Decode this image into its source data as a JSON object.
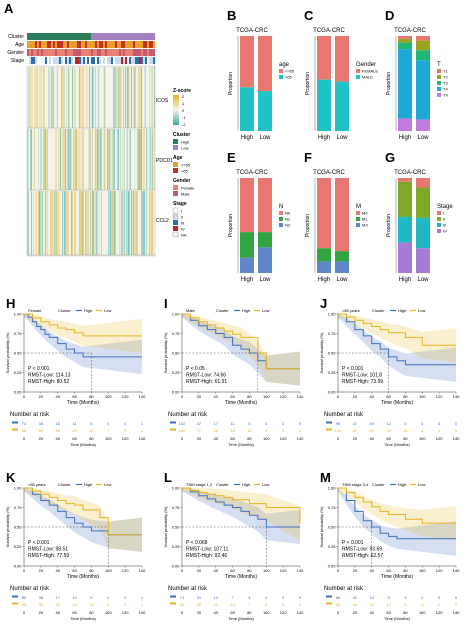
{
  "colors": {
    "high": "#3f6fbf",
    "low": "#e6b420",
    "cluster_high": "#2e7d5b",
    "cluster_low": "#a37fc4",
    "age_le65": "#e69f2a",
    "age_gt65": "#c4312a",
    "gender_female": "#e6836f",
    "gender_male": "#c25a6e",
    "stage_I": "#ffffff",
    "stage_II": "#c9dcef",
    "stage_III": "#2f6ea8",
    "stage_IV": "#b6232b",
    "stage_NA": "#f5f5f5",
    "zhigh": "#e5b11e",
    "zmid": "#f4f4ec",
    "zlow": "#3caaa0"
  },
  "heatmap": {
    "panel_label": "A",
    "track_labels": [
      "Cluster",
      "Age",
      "Gender",
      "Stage"
    ],
    "gene_labels": [
      "ICOS",
      "PDCD1",
      "CCL2"
    ],
    "legend": {
      "zscore_title": "Z-score",
      "zscore_ticks": [
        "2",
        "1",
        "0",
        "-1",
        "-2"
      ],
      "cluster_title": "Cluster",
      "cluster_items": [
        "High",
        "Low"
      ],
      "age_title": "Age",
      "age_items": [
        "<=65",
        ">65"
      ],
      "gender_title": "Gender",
      "gender_items": [
        "Female",
        "Male"
      ],
      "stage_title": "Stage",
      "stage_items": [
        "I",
        "II",
        "III",
        "IV",
        "NA"
      ]
    }
  },
  "chart_data": [
    {
      "type": "bar",
      "panel": "B",
      "title": "TCGA-CRC",
      "categories": [
        "High",
        "Low"
      ],
      "ylabel": "Proportion",
      "legend_title": "age",
      "series": [
        {
          "name": "<=65",
          "color": "#e8776f",
          "values": [
            0.54,
            0.58
          ]
        },
        {
          "name": ">65",
          "color": "#20c4c6",
          "values": [
            0.46,
            0.42
          ]
        }
      ],
      "ylim": [
        0,
        1
      ]
    },
    {
      "type": "bar",
      "panel": "C",
      "title": "TCGA-CRC",
      "categories": [
        "High",
        "Low"
      ],
      "ylabel": "Proportion",
      "legend_title": "Gender",
      "series": [
        {
          "name": "FEMALE",
          "color": "#e8776f",
          "values": [
            0.46,
            0.48
          ]
        },
        {
          "name": "MALE",
          "color": "#20c4c6",
          "values": [
            0.54,
            0.52
          ]
        }
      ],
      "ylim": [
        0,
        1
      ]
    },
    {
      "type": "bar",
      "panel": "D",
      "title": "TCGA-CRC",
      "categories": [
        "High",
        "Low"
      ],
      "ylabel": "Proportion",
      "legend_title": "T",
      "series": [
        {
          "name": "T1",
          "color": "#e8776f",
          "values": [
            0.03,
            0.05
          ]
        },
        {
          "name": "T2",
          "color": "#9aa31f",
          "values": [
            0.04,
            0.1
          ]
        },
        {
          "name": "T3",
          "color": "#20b67a",
          "values": [
            0.07,
            0.11
          ]
        },
        {
          "name": "T4",
          "color": "#1fa7d6",
          "values": [
            0.73,
            0.62
          ]
        },
        {
          "name": "TX",
          "color": "#c27bdd",
          "values": [
            0.13,
            0.12
          ]
        }
      ],
      "ylim": [
        0,
        1
      ]
    },
    {
      "type": "bar",
      "panel": "E",
      "title": "TCGA-CRC",
      "categories": [
        "High",
        "Low"
      ],
      "ylabel": "Proportion",
      "legend_title": "N",
      "series": [
        {
          "name": "N0",
          "color": "#e8776f",
          "values": [
            0.57,
            0.57
          ]
        },
        {
          "name": "N1",
          "color": "#2ea53f",
          "values": [
            0.27,
            0.16
          ]
        },
        {
          "name": "N2",
          "color": "#5e86c9",
          "values": [
            0.16,
            0.27
          ]
        }
      ],
      "ylim": [
        0,
        1
      ]
    },
    {
      "type": "bar",
      "panel": "F",
      "title": "TCGA-CRC",
      "categories": [
        "High",
        "Low"
      ],
      "ylabel": "Proportion",
      "legend_title": "M",
      "series": [
        {
          "name": "M0",
          "color": "#e8776f",
          "values": [
            0.74,
            0.77
          ]
        },
        {
          "name": "M1",
          "color": "#2ea53f",
          "values": [
            0.14,
            0.11
          ]
        },
        {
          "name": "MX",
          "color": "#5e86c9",
          "values": [
            0.12,
            0.12
          ]
        }
      ],
      "ylim": [
        0,
        1
      ]
    },
    {
      "type": "bar",
      "panel": "G",
      "title": "TCGA-CRC",
      "categories": [
        "High",
        "Low"
      ],
      "ylabel": "Proportion",
      "legend_title": "Stage",
      "series": [
        {
          "name": "I",
          "color": "#e8776f",
          "values": [
            0.04,
            0.1
          ]
        },
        {
          "name": "II",
          "color": "#7ea82a",
          "values": [
            0.37,
            0.32
          ]
        },
        {
          "name": "III",
          "color": "#20b8c4",
          "values": [
            0.27,
            0.32
          ]
        },
        {
          "name": "IV",
          "color": "#a67bd6",
          "values": [
            0.32,
            0.26
          ]
        }
      ],
      "ylim": [
        0,
        1
      ]
    },
    {
      "type": "line",
      "panel": "H",
      "subtitle": "Female",
      "legend_title": "Cluster",
      "legend": [
        "High",
        "Low"
      ],
      "xlabel": "Time (Months)",
      "ylabel": "Survival probability (%)",
      "xticks": [
        0,
        20,
        40,
        60,
        80,
        100,
        120,
        140
      ],
      "yticks": [
        "0.00",
        "0.25",
        "0.50",
        "0.75",
        "1.00"
      ],
      "xlim": [
        0,
        140
      ],
      "ylim": [
        0,
        1
      ],
      "annotations": [
        "P < 0.001",
        "RMST-Low: 114.13",
        "RMST-High: 80.52"
      ],
      "series": [
        {
          "name": "High",
          "x": [
            0,
            5,
            10,
            15,
            20,
            25,
            30,
            40,
            50,
            60,
            70,
            80,
            140
          ],
          "y": [
            1,
            0.96,
            0.9,
            0.84,
            0.8,
            0.74,
            0.7,
            0.62,
            0.55,
            0.5,
            0.45,
            0.45,
            0.45
          ]
        },
        {
          "name": "Low",
          "x": [
            0,
            10,
            20,
            30,
            40,
            50,
            60,
            70,
            100,
            140
          ],
          "y": [
            1,
            0.95,
            0.9,
            0.86,
            0.82,
            0.8,
            0.76,
            0.72,
            0.72,
            0.72
          ]
        }
      ],
      "median_x": 80,
      "risk_table": {
        "title": "Number at risk",
        "high": [
          "74",
          "38",
          "16",
          "11",
          "6",
          "4",
          "4",
          "1"
        ],
        "low": [
          "88",
          "65",
          "35",
          "20",
          "12",
          "7",
          "3",
          "1"
        ]
      }
    },
    {
      "type": "line",
      "panel": "I",
      "subtitle": "Male",
      "legend_title": "Cluster",
      "legend": [
        "High",
        "Low"
      ],
      "xlabel": "Time (Months)",
      "ylabel": "Survival probability (%)",
      "xticks": [
        0,
        20,
        40,
        60,
        80,
        100,
        120,
        140
      ],
      "yticks": [
        "0.00",
        "0.25",
        "0.50",
        "0.75",
        "1.00"
      ],
      "xlim": [
        0,
        140
      ],
      "ylim": [
        0,
        1
      ],
      "annotations": [
        "P < 0.05",
        "RMST-Low: 74.66",
        "RMST-High: 61.91"
      ],
      "series": [
        {
          "name": "High",
          "x": [
            0,
            10,
            20,
            30,
            40,
            50,
            60,
            70,
            80,
            90,
            100,
            140
          ],
          "y": [
            1,
            0.92,
            0.85,
            0.8,
            0.75,
            0.7,
            0.6,
            0.55,
            0.5,
            0.4,
            0.3,
            0.3
          ]
        },
        {
          "name": "Low",
          "x": [
            0,
            10,
            20,
            30,
            40,
            50,
            60,
            70,
            90,
            100,
            110,
            140
          ],
          "y": [
            1,
            0.95,
            0.9,
            0.86,
            0.82,
            0.78,
            0.74,
            0.7,
            0.5,
            0.3,
            0.3,
            0.3
          ]
        }
      ],
      "median_x": 90,
      "risk_table": {
        "title": "Number at risk",
        "high": [
          "102",
          "47",
          "17",
          "11",
          "5",
          "4",
          "2",
          "0"
        ],
        "low": [
          "130",
          "77",
          "36",
          "16",
          "13",
          "5",
          "3",
          "1"
        ]
      }
    },
    {
      "type": "line",
      "panel": "J",
      "subtitle": ">65 years",
      "legend_title": "Cluster",
      "legend": [
        "High",
        "Low"
      ],
      "xlabel": "Time (Months)",
      "ylabel": "Survival probability (%)",
      "xticks": [
        0,
        20,
        40,
        60,
        80,
        100,
        120,
        140
      ],
      "yticks": [
        "0.00",
        "0.25",
        "0.50",
        "0.75",
        "1.00"
      ],
      "xlim": [
        0,
        140
      ],
      "ylim": [
        0,
        1
      ],
      "annotations": [
        "P < 0.001",
        "RMST-Low: 101.8",
        "RMST-High: 73.99"
      ],
      "series": [
        {
          "name": "High",
          "x": [
            0,
            10,
            20,
            30,
            40,
            50,
            60,
            70,
            80,
            140
          ],
          "y": [
            1,
            0.9,
            0.8,
            0.72,
            0.62,
            0.55,
            0.45,
            0.4,
            0.35,
            0.35
          ]
        },
        {
          "name": "Low",
          "x": [
            0,
            10,
            20,
            30,
            40,
            50,
            60,
            80,
            100,
            140
          ],
          "y": [
            1,
            0.96,
            0.92,
            0.88,
            0.84,
            0.8,
            0.76,
            0.7,
            0.6,
            0.6
          ]
        }
      ],
      "median_x": 60,
      "risk_table": {
        "title": "Number at risk",
        "high": [
          "96",
          "47",
          "19",
          "12",
          "5",
          "4",
          "0",
          "0"
        ],
        "low": [
          "128",
          "87",
          "41",
          "22",
          "11",
          "6",
          "4",
          "1"
        ]
      }
    },
    {
      "type": "line",
      "panel": "K",
      "subtitle": "<65 years",
      "legend_title": "Cluster",
      "legend": [
        "High",
        "Low"
      ],
      "xlabel": "Time (Months)",
      "ylabel": "Survival probability (%)",
      "xticks": [
        0,
        20,
        40,
        60,
        80,
        100,
        120,
        140
      ],
      "yticks": [
        "0.00",
        "0.25",
        "0.50",
        "0.75",
        "1.00"
      ],
      "xlim": [
        0,
        140
      ],
      "ylim": [
        0,
        1
      ],
      "annotations": [
        "P < 0.001",
        "RMST-Low: 98.51",
        "RMST-High: 77.59"
      ],
      "series": [
        {
          "name": "High",
          "x": [
            0,
            10,
            20,
            30,
            40,
            50,
            60,
            70,
            80,
            100,
            140
          ],
          "y": [
            1,
            0.92,
            0.84,
            0.78,
            0.7,
            0.62,
            0.55,
            0.5,
            0.45,
            0.4,
            0.4
          ]
        },
        {
          "name": "Low",
          "x": [
            0,
            10,
            20,
            30,
            40,
            50,
            60,
            70,
            90,
            100,
            140
          ],
          "y": [
            1,
            0.96,
            0.92,
            0.88,
            0.84,
            0.8,
            0.78,
            0.72,
            0.62,
            0.4,
            0.4
          ]
        }
      ],
      "median_x": 100,
      "risk_table": {
        "title": "Number at risk",
        "high": [
          "80",
          "38",
          "17",
          "10",
          "5",
          "4",
          "3",
          "1"
        ],
        "low": [
          "90",
          "55",
          "30",
          "14",
          "10",
          "3",
          "1",
          "1"
        ]
      }
    },
    {
      "type": "line",
      "panel": "L",
      "subtitle": "TNM stage 1,2",
      "legend_title": "Cluster",
      "legend": [
        "High",
        "Low"
      ],
      "xlabel": "Time (Months)",
      "ylabel": "Survival probability (%)",
      "xticks": [
        0,
        20,
        40,
        60,
        80,
        100,
        120,
        140
      ],
      "yticks": [
        "0.00",
        "0.25",
        "0.50",
        "0.75",
        "1.00"
      ],
      "xlim": [
        0,
        140
      ],
      "ylim": [
        0,
        1
      ],
      "annotations": [
        "P < 0.068",
        "RMST-Low: 107.11",
        "RMST-High: 92.46"
      ],
      "series": [
        {
          "name": "High",
          "x": [
            0,
            10,
            20,
            30,
            40,
            50,
            60,
            70,
            80,
            90,
            100,
            140
          ],
          "y": [
            1,
            0.95,
            0.9,
            0.86,
            0.82,
            0.78,
            0.75,
            0.7,
            0.65,
            0.6,
            0.5,
            0.5
          ]
        },
        {
          "name": "Low",
          "x": [
            0,
            10,
            20,
            30,
            40,
            50,
            60,
            80,
            100,
            140
          ],
          "y": [
            1,
            0.97,
            0.94,
            0.92,
            0.9,
            0.88,
            0.85,
            0.8,
            0.75,
            0.55
          ]
        }
      ],
      "median_x": 100,
      "risk_table": {
        "title": "Number at risk",
        "high": [
          "71",
          "31",
          "14",
          "7",
          "4",
          "4",
          "3",
          "0"
        ],
        "low": [
          "90",
          "45",
          "21",
          "10",
          "7",
          "5",
          "3",
          "1"
        ]
      }
    },
    {
      "type": "line",
      "panel": "M",
      "subtitle": "TNM stage 3,4",
      "legend_title": "Cluster",
      "legend": [
        "High",
        "Low"
      ],
      "xlabel": "Time (Months)",
      "ylabel": "Survival probability (%)",
      "xticks": [
        0,
        20,
        40,
        60,
        80,
        100,
        120,
        140
      ],
      "yticks": [
        "0.00",
        "0.25",
        "0.50",
        "0.75",
        "1.00"
      ],
      "xlim": [
        0,
        140
      ],
      "ylim": [
        0,
        1
      ],
      "annotations": [
        "P < 0.001",
        "RMST-Low: 93.69",
        "RMST-High: 62.57"
      ],
      "series": [
        {
          "name": "High",
          "x": [
            0,
            10,
            20,
            30,
            40,
            50,
            60,
            70,
            140
          ],
          "y": [
            1,
            0.84,
            0.7,
            0.58,
            0.5,
            0.42,
            0.38,
            0.35,
            0.35
          ]
        },
        {
          "name": "Low",
          "x": [
            0,
            10,
            20,
            30,
            40,
            50,
            60,
            80,
            100,
            140
          ],
          "y": [
            1,
            0.94,
            0.88,
            0.82,
            0.76,
            0.7,
            0.66,
            0.6,
            0.55,
            0.55
          ]
        }
      ],
      "median_x": 40,
      "risk_table": {
        "title": "Number at risk",
        "high": [
          "86",
          "32",
          "12",
          "5",
          "3",
          "2",
          "0",
          "0"
        ],
        "low": [
          "90",
          "44",
          "23",
          "13",
          "5",
          "3",
          "2",
          "0"
        ]
      }
    }
  ]
}
